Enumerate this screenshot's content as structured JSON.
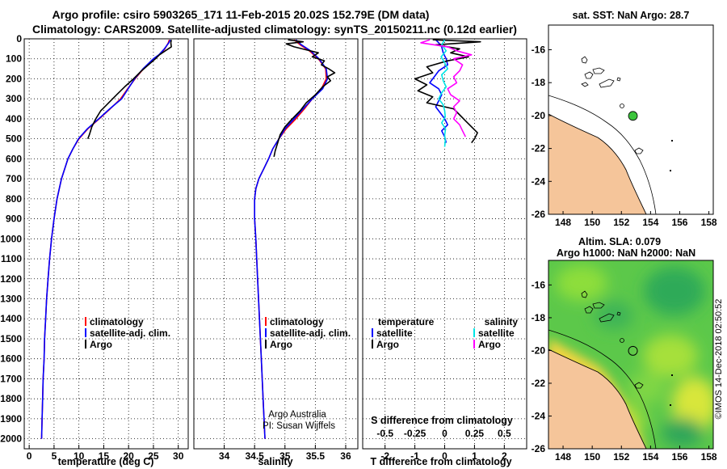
{
  "header": {
    "line1": "Argo profile: csiro 5903265_171 11-Feb-2015 20.02S 152.79E (DM data)",
    "line2": "Climatology: CARS2009. Satellite-adjusted climatology: synTS_20150211.nc (0.12d earlier)"
  },
  "colors": {
    "climatology": "#ff0000",
    "satellite": "#0000ff",
    "argo": "#000000",
    "sal_satellite": "#00e5e5",
    "sal_argo": "#ff00ff",
    "land": "#f5c59a",
    "marker": "#3cc43c"
  },
  "depth_axis": {
    "ticks": [
      "0",
      "100",
      "200",
      "300",
      "400",
      "500",
      "600",
      "700",
      "800",
      "900",
      "1000",
      "1100",
      "1200",
      "1300",
      "1400",
      "1500",
      "1600",
      "1700",
      "1800",
      "1900",
      "2000"
    ]
  },
  "chart_data": [
    {
      "type": "line",
      "name": "temperature-panel",
      "xlabel": "temperature (deg C)",
      "xlim": [
        -1,
        32
      ],
      "xticks": [
        "0",
        "5",
        "10",
        "15",
        "20",
        "25",
        "30"
      ],
      "xtick_values": [
        0,
        5,
        10,
        15,
        20,
        25,
        30
      ],
      "ylim": [
        2050,
        0
      ],
      "legend": {
        "items": [
          "climatology",
          "satellite-adj. clim.",
          "Argo"
        ]
      },
      "series": [
        {
          "name": "climatology",
          "color_key": "climatology",
          "depth": [
            5,
            20,
            50,
            80,
            100,
            150,
            200,
            250,
            300,
            350,
            400,
            450,
            500,
            550,
            600,
            700,
            800,
            900,
            1000,
            1100,
            1200,
            1300,
            1400,
            1500,
            1600,
            1700,
            1800,
            1900,
            2000
          ],
          "values": [
            28.2,
            28.0,
            27.3,
            26.2,
            25.2,
            23.0,
            21.3,
            19.8,
            18.4,
            16.3,
            14.1,
            11.8,
            10.0,
            8.8,
            7.8,
            6.5,
            5.6,
            5.0,
            4.5,
            4.1,
            3.8,
            3.5,
            3.3,
            3.1,
            3.0,
            2.8,
            2.7,
            2.6,
            2.5
          ]
        },
        {
          "name": "satellite-adj. clim.",
          "color_key": "satellite",
          "depth": [
            5,
            20,
            50,
            80,
            100,
            150,
            200,
            250,
            300,
            350,
            400,
            450,
            500,
            550,
            600,
            700,
            800,
            900,
            1000,
            1100,
            1200,
            1300,
            1400,
            1500,
            1600,
            1700,
            1800,
            1900,
            2000
          ],
          "values": [
            28.4,
            28.1,
            27.2,
            26.1,
            25.0,
            22.9,
            21.2,
            19.9,
            18.6,
            16.2,
            14.0,
            11.7,
            9.9,
            8.8,
            7.8,
            6.5,
            5.6,
            5.0,
            4.5,
            4.1,
            3.8,
            3.5,
            3.3,
            3.1,
            3.0,
            2.8,
            2.7,
            2.6,
            2.5
          ]
        },
        {
          "name": "Argo",
          "color_key": "argo",
          "depth": [
            5,
            20,
            40,
            60,
            80,
            100,
            130,
            160,
            200,
            240,
            280,
            320,
            360,
            400,
            440,
            480,
            500
          ],
          "values": [
            28.6,
            28.5,
            28.6,
            27.4,
            26.2,
            25.4,
            24.0,
            22.6,
            21.0,
            19.2,
            17.6,
            16.0,
            14.4,
            13.4,
            12.6,
            12.1,
            11.8
          ]
        }
      ]
    },
    {
      "type": "line",
      "name": "salinity-panel",
      "xlabel": "salinity",
      "xlim": [
        33.5,
        36.2
      ],
      "xticks": [
        "34",
        "34.5",
        "35",
        "35.5",
        "36"
      ],
      "xtick_values": [
        34,
        34.5,
        35,
        35.5,
        36
      ],
      "ylim": [
        2050,
        0
      ],
      "legend": {
        "items": [
          "climatology",
          "satellite-adj. clim.",
          "Argo"
        ]
      },
      "note": [
        "Argo Australia",
        "PI: Susan Wijffels"
      ],
      "series": [
        {
          "name": "climatology",
          "color_key": "climatology",
          "depth": [
            5,
            30,
            60,
            100,
            150,
            200,
            250,
            300,
            350,
            400,
            450,
            500,
            550,
            600,
            650,
            700,
            750,
            800,
            900,
            1000,
            1200,
            1400,
            1600,
            1800,
            2000
          ],
          "values": [
            35.15,
            35.25,
            35.4,
            35.55,
            35.67,
            35.68,
            35.6,
            35.45,
            35.32,
            35.18,
            35.02,
            34.9,
            34.8,
            34.73,
            34.65,
            34.57,
            34.52,
            34.5,
            34.5,
            34.52,
            34.55,
            34.58,
            34.61,
            34.64,
            34.67
          ]
        },
        {
          "name": "satellite-adj. clim.",
          "color_key": "satellite",
          "depth": [
            5,
            30,
            60,
            100,
            150,
            200,
            250,
            300,
            350,
            400,
            450,
            500,
            550,
            600,
            650,
            700,
            750,
            800,
            900,
            1000,
            1200,
            1400,
            1600,
            1800,
            2000
          ],
          "values": [
            35.18,
            35.27,
            35.42,
            35.56,
            35.68,
            35.7,
            35.62,
            35.45,
            35.3,
            35.15,
            35.0,
            34.9,
            34.8,
            34.73,
            34.65,
            34.57,
            34.52,
            34.5,
            34.5,
            34.52,
            34.55,
            34.58,
            34.61,
            34.64,
            34.67
          ]
        },
        {
          "name": "Argo",
          "color_key": "argo",
          "depth": [
            5,
            15,
            25,
            40,
            55,
            70,
            90,
            110,
            130,
            150,
            170,
            190,
            210,
            240,
            280,
            320,
            360,
            400,
            440,
            480,
            520,
            560,
            590
          ],
          "values": [
            35.05,
            35.3,
            35.02,
            35.15,
            35.35,
            35.55,
            35.45,
            35.65,
            35.6,
            35.72,
            35.82,
            35.7,
            35.75,
            35.62,
            35.5,
            35.35,
            35.25,
            35.12,
            35.0,
            34.92,
            34.88,
            34.84,
            34.82
          ]
        }
      ]
    },
    {
      "type": "line",
      "name": "difference-panel",
      "xlabel": "T difference from climatology",
      "xlabel_top": "S difference from climatology",
      "xlim": [
        -2.75,
        2.75
      ],
      "xticks": [
        "-2",
        "-1",
        "0",
        "1",
        "2"
      ],
      "xtick_values": [
        -2,
        -1,
        0,
        1,
        2
      ],
      "xticks_top": [
        "-0.5",
        "-0.25",
        "0",
        "0.25",
        "0.5"
      ],
      "xticks_top_values": [
        -2,
        -1,
        0,
        1,
        2
      ],
      "ylim": [
        2050,
        0
      ],
      "legend": {
        "left_title": "temperature",
        "right_title": "salinity",
        "left_items": [
          "satellite",
          "Argo"
        ],
        "right_items": [
          "satellite",
          "Argo"
        ]
      },
      "series": [
        {
          "name": "T satellite",
          "color_key": "satellite",
          "depth": [
            5,
            20,
            40,
            70,
            100,
            130,
            160,
            190,
            220,
            250,
            280,
            310,
            340,
            370,
            400,
            430,
            460,
            490,
            520
          ],
          "values": [
            -0.3,
            -0.2,
            -0.1,
            -0.05,
            0.05,
            0.1,
            -0.2,
            -0.35,
            -0.5,
            -0.2,
            -0.1,
            -0.2,
            -0.3,
            -0.15,
            0.0,
            0.1,
            -0.1,
            0.0,
            0.05
          ]
        },
        {
          "name": "T Argo",
          "color_key": "argo",
          "depth": [
            5,
            15,
            30,
            50,
            70,
            90,
            110,
            140,
            170,
            200,
            230,
            260,
            290,
            320,
            350,
            380,
            410,
            440,
            470,
            500,
            520
          ],
          "values": [
            -0.4,
            1.2,
            -0.3,
            0.5,
            0.2,
            0.8,
            0.1,
            -0.6,
            -0.4,
            -1.0,
            -0.6,
            -0.9,
            -0.4,
            -0.6,
            0.3,
            0.5,
            0.7,
            0.9,
            1.1,
            1.0,
            0.9
          ]
        },
        {
          "name": "S satellite",
          "color_key": "sal_satellite",
          "depth": [
            5,
            30,
            60,
            90,
            120,
            150,
            180,
            210,
            240,
            270,
            300,
            330,
            360,
            390,
            420,
            450,
            480,
            510,
            540
          ],
          "values": [
            0.0,
            -0.1,
            0.05,
            -0.12,
            0.0,
            0.1,
            -0.1,
            -0.05,
            0.05,
            -0.1,
            -0.2,
            -0.05,
            0.0,
            0.02,
            -0.1,
            0.03,
            0.0,
            0.02,
            0.0
          ]
        },
        {
          "name": "S Argo",
          "color_key": "sal_argo",
          "depth": [
            5,
            20,
            40,
            60,
            80,
            100,
            130,
            160,
            190,
            220,
            250,
            280,
            310,
            340,
            370,
            400,
            430,
            460,
            490
          ],
          "values": [
            -0.5,
            -0.8,
            0.1,
            0.4,
            0.9,
            0.3,
            0.6,
            0.5,
            0.3,
            0.4,
            0.1,
            0.2,
            0.5,
            0.3,
            0.4,
            0.3,
            0.5,
            0.6,
            0.7
          ]
        }
      ]
    },
    {
      "type": "map",
      "name": "sst-map",
      "title": "sat. SST: NaN Argo: 28.7",
      "lon_ticks": [
        "148",
        "150",
        "152",
        "154",
        "156",
        "158"
      ],
      "lon_values": [
        148,
        150,
        152,
        154,
        156,
        158
      ],
      "lat_ticks": [
        "-16",
        "-18",
        "-20",
        "-22",
        "-24",
        "-26"
      ],
      "lat_values": [
        -16,
        -18,
        -20,
        -22,
        -24,
        -26
      ],
      "lon_range": [
        147,
        158.3
      ],
      "lat_range": [
        -26,
        -14.5
      ],
      "argo_position": {
        "lon": 152.79,
        "lat": -20.02
      }
    },
    {
      "type": "heatmap",
      "name": "sla-map",
      "title_line1": "Altim. SLA: 0.079",
      "title_line2": "Argo h1000: NaN h2000: NaN",
      "lon_ticks": [
        "148",
        "150",
        "152",
        "154",
        "156",
        "158"
      ],
      "lon_values": [
        148,
        150,
        152,
        154,
        156,
        158
      ],
      "lat_ticks": [
        "-16",
        "-18",
        "-20",
        "-22",
        "-24",
        "-26"
      ],
      "lat_values": [
        -16,
        -18,
        -20,
        -22,
        -24,
        -26
      ],
      "lon_range": [
        147,
        158.3
      ],
      "lat_range": [
        -26,
        -14.5
      ],
      "argo_position": {
        "lon": 152.79,
        "lat": -20.02
      }
    }
  ],
  "credit": "©IMOS 14-Dec-2018 02:50:52"
}
